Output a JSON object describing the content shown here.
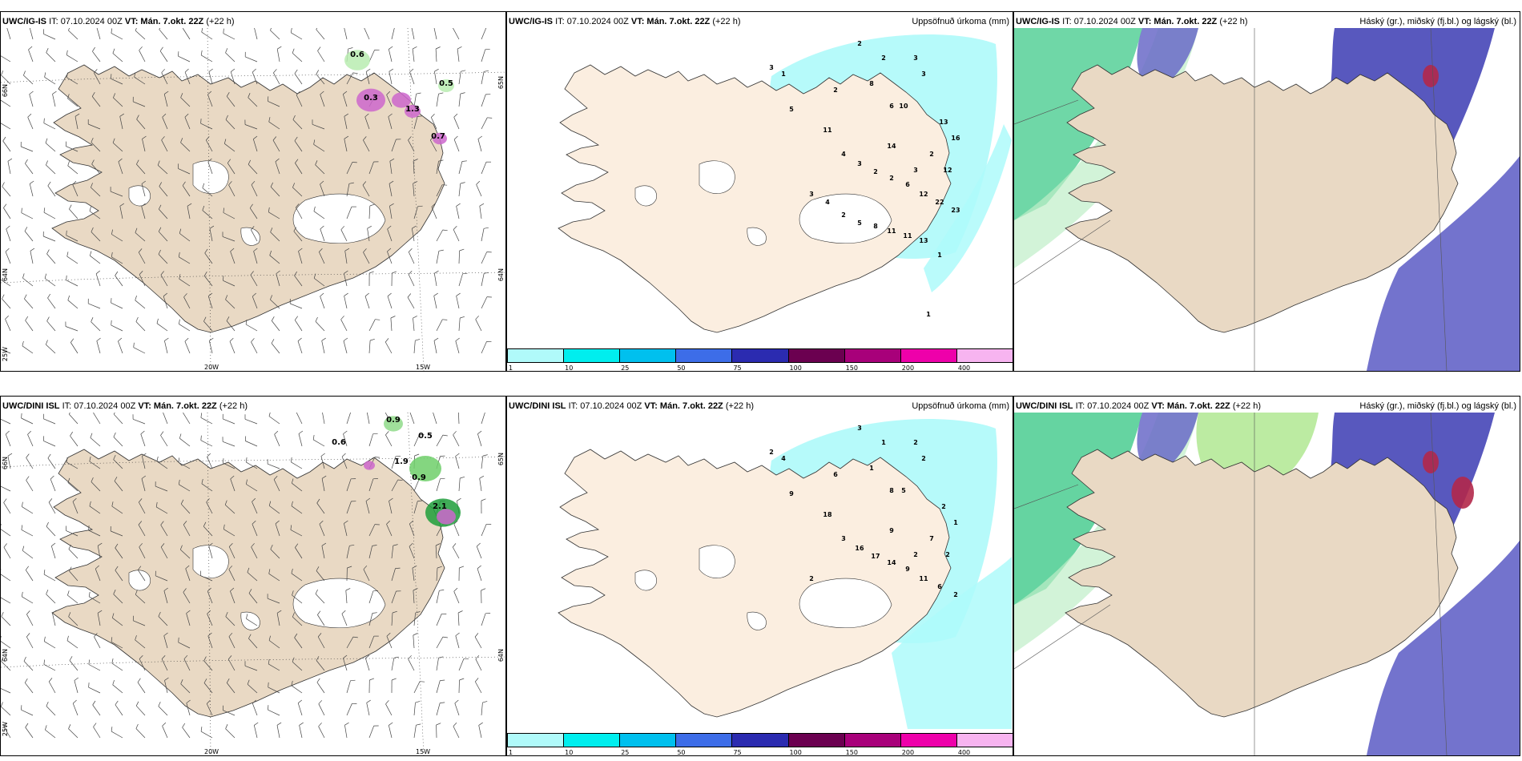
{
  "colors": {
    "land": "#e9d9c4",
    "precip_land": "#fbeee0",
    "water": "#ffffff",
    "cyan": "#aefafa",
    "navy": "#4a4ab8",
    "green": "#3fc98a",
    "magenta": "#cc66cc"
  },
  "rows": [
    {
      "wind": {
        "model": "UWC/IG-IS",
        "it": "IT: 07.10.2024 00Z",
        "vt_label": "VT:",
        "vt": "Mán. 7.okt. 22Z",
        "lead": "(+22 h)",
        "lat_left": [
          "66N",
          "64N"
        ],
        "lat_right": [
          "65N",
          "64N"
        ],
        "lon_bottom": [
          "20W",
          "15W"
        ],
        "corner": "25W",
        "labels": [
          "0.6",
          "0.5",
          "0.3",
          "1.3",
          "0.7"
        ]
      },
      "precip": {
        "model": "UWC/IG-IS",
        "it": "IT: 07.10.2024 00Z",
        "vt_label": "VT:",
        "vt": "Mán. 7.okt. 22Z",
        "lead": "(+22 h)",
        "field": "Uppsöfnuð úrkoma (mm)",
        "labels": [
          "2",
          "3",
          "2",
          "3",
          "8",
          "3",
          "2",
          "1",
          "5",
          "6",
          "10",
          "11",
          "4",
          "3",
          "2",
          "2",
          "6",
          "12",
          "22",
          "23",
          "2",
          "14",
          "3",
          "12",
          "13",
          "16",
          "3",
          "4",
          "2",
          "5",
          "8",
          "11",
          "11",
          "13",
          "1",
          "1"
        ]
      },
      "cloud": {
        "model": "UWC/IG-IS",
        "it": "IT: 07.10.2024 00Z",
        "vt_label": "VT:",
        "vt": "Mán. 7.okt. 22Z",
        "lead": "(+22 h)",
        "field": "Háský (gr.), miðský (fj.bl.) og lágský (bl.)"
      }
    },
    {
      "wind": {
        "model": "UWC/DINI ISL",
        "it": "IT: 07.10.2024 00Z",
        "vt_label": "VT:",
        "vt": "Mán. 7.okt. 22Z",
        "lead": "(+22 h)",
        "lat_left": [
          "66N",
          "64N"
        ],
        "lat_right": [
          "65N",
          "64N"
        ],
        "lon_bottom": [
          "20W",
          "15W"
        ],
        "corner": "25W",
        "labels": [
          "0.9",
          "0.5",
          "0.6",
          "1.9",
          "0.9",
          "2.1"
        ]
      },
      "precip": {
        "model": "UWC/DINI ISL",
        "it": "IT: 07.10.2024 00Z",
        "vt_label": "VT:",
        "vt": "Mán. 7.okt. 22Z",
        "lead": "(+22 h)",
        "field": "Uppsöfnuð úrkoma (mm)",
        "labels": [
          "3",
          "2",
          "1",
          "2",
          "1",
          "2",
          "6",
          "4",
          "9",
          "8",
          "5",
          "18",
          "3",
          "16",
          "17",
          "14",
          "9",
          "11",
          "6",
          "2",
          "7",
          "9",
          "2",
          "2",
          "2",
          "1",
          "2"
        ]
      },
      "cloud": {
        "model": "UWC/DINI ISL",
        "it": "IT: 07.10.2024 00Z",
        "vt_label": "VT:",
        "vt": "Mán. 7.okt. 22Z",
        "lead": "(+22 h)",
        "field": "Háský (gr.), miðský (fj.bl.) og lágský (bl.)"
      }
    }
  ],
  "legend": {
    "ticks": [
      "1",
      "10",
      "25",
      "50",
      "75",
      "100",
      "150",
      "200",
      "400"
    ],
    "colors": [
      "#b0fafa",
      "#00eeee",
      "#00c0ee",
      "#3d6de8",
      "#2b2bb0",
      "#6b0050",
      "#a8007a",
      "#ee00aa",
      "#f7b4f0"
    ]
  }
}
